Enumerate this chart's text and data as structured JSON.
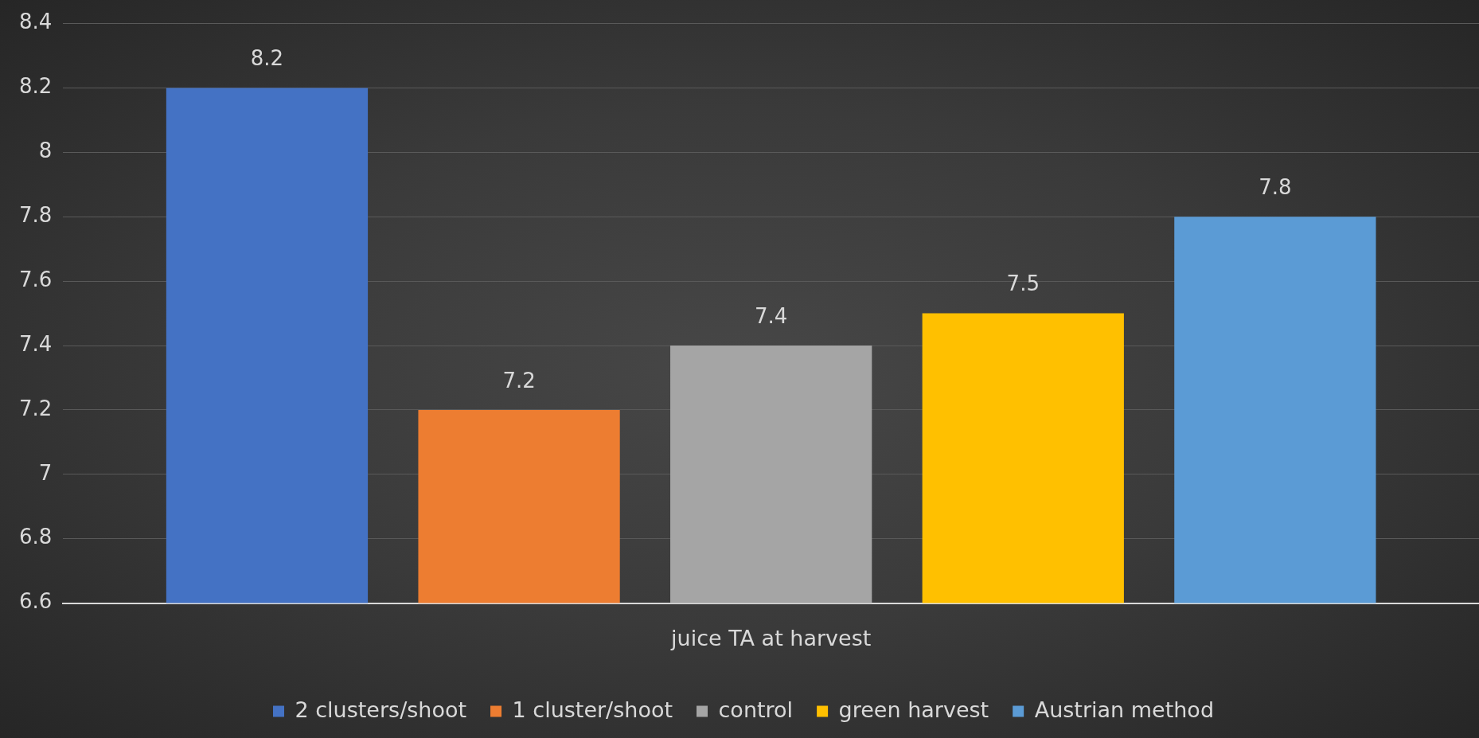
{
  "chart_data": {
    "type": "bar",
    "categories": [
      "juice TA at harvest"
    ],
    "series": [
      {
        "name": "2 clusters/shoot",
        "color": "#4472c4",
        "values": [
          8.2
        ]
      },
      {
        "name": "1 cluster/shoot",
        "color": "#ed7d31",
        "values": [
          7.2
        ]
      },
      {
        "name": "control",
        "color": "#a5a5a5",
        "values": [
          7.4
        ]
      },
      {
        "name": "green harvest",
        "color": "#ffc000",
        "values": [
          7.5
        ]
      },
      {
        "name": "Austrian method",
        "color": "#5b9bd5",
        "values": [
          7.8
        ]
      }
    ],
    "ylim": [
      6.6,
      8.4
    ],
    "yticks": [
      6.6,
      6.8,
      7,
      7.2,
      7.4,
      7.6,
      7.8,
      8,
      8.2,
      8.4
    ],
    "grid": "y",
    "legend": "bottom",
    "data_labels": true
  }
}
